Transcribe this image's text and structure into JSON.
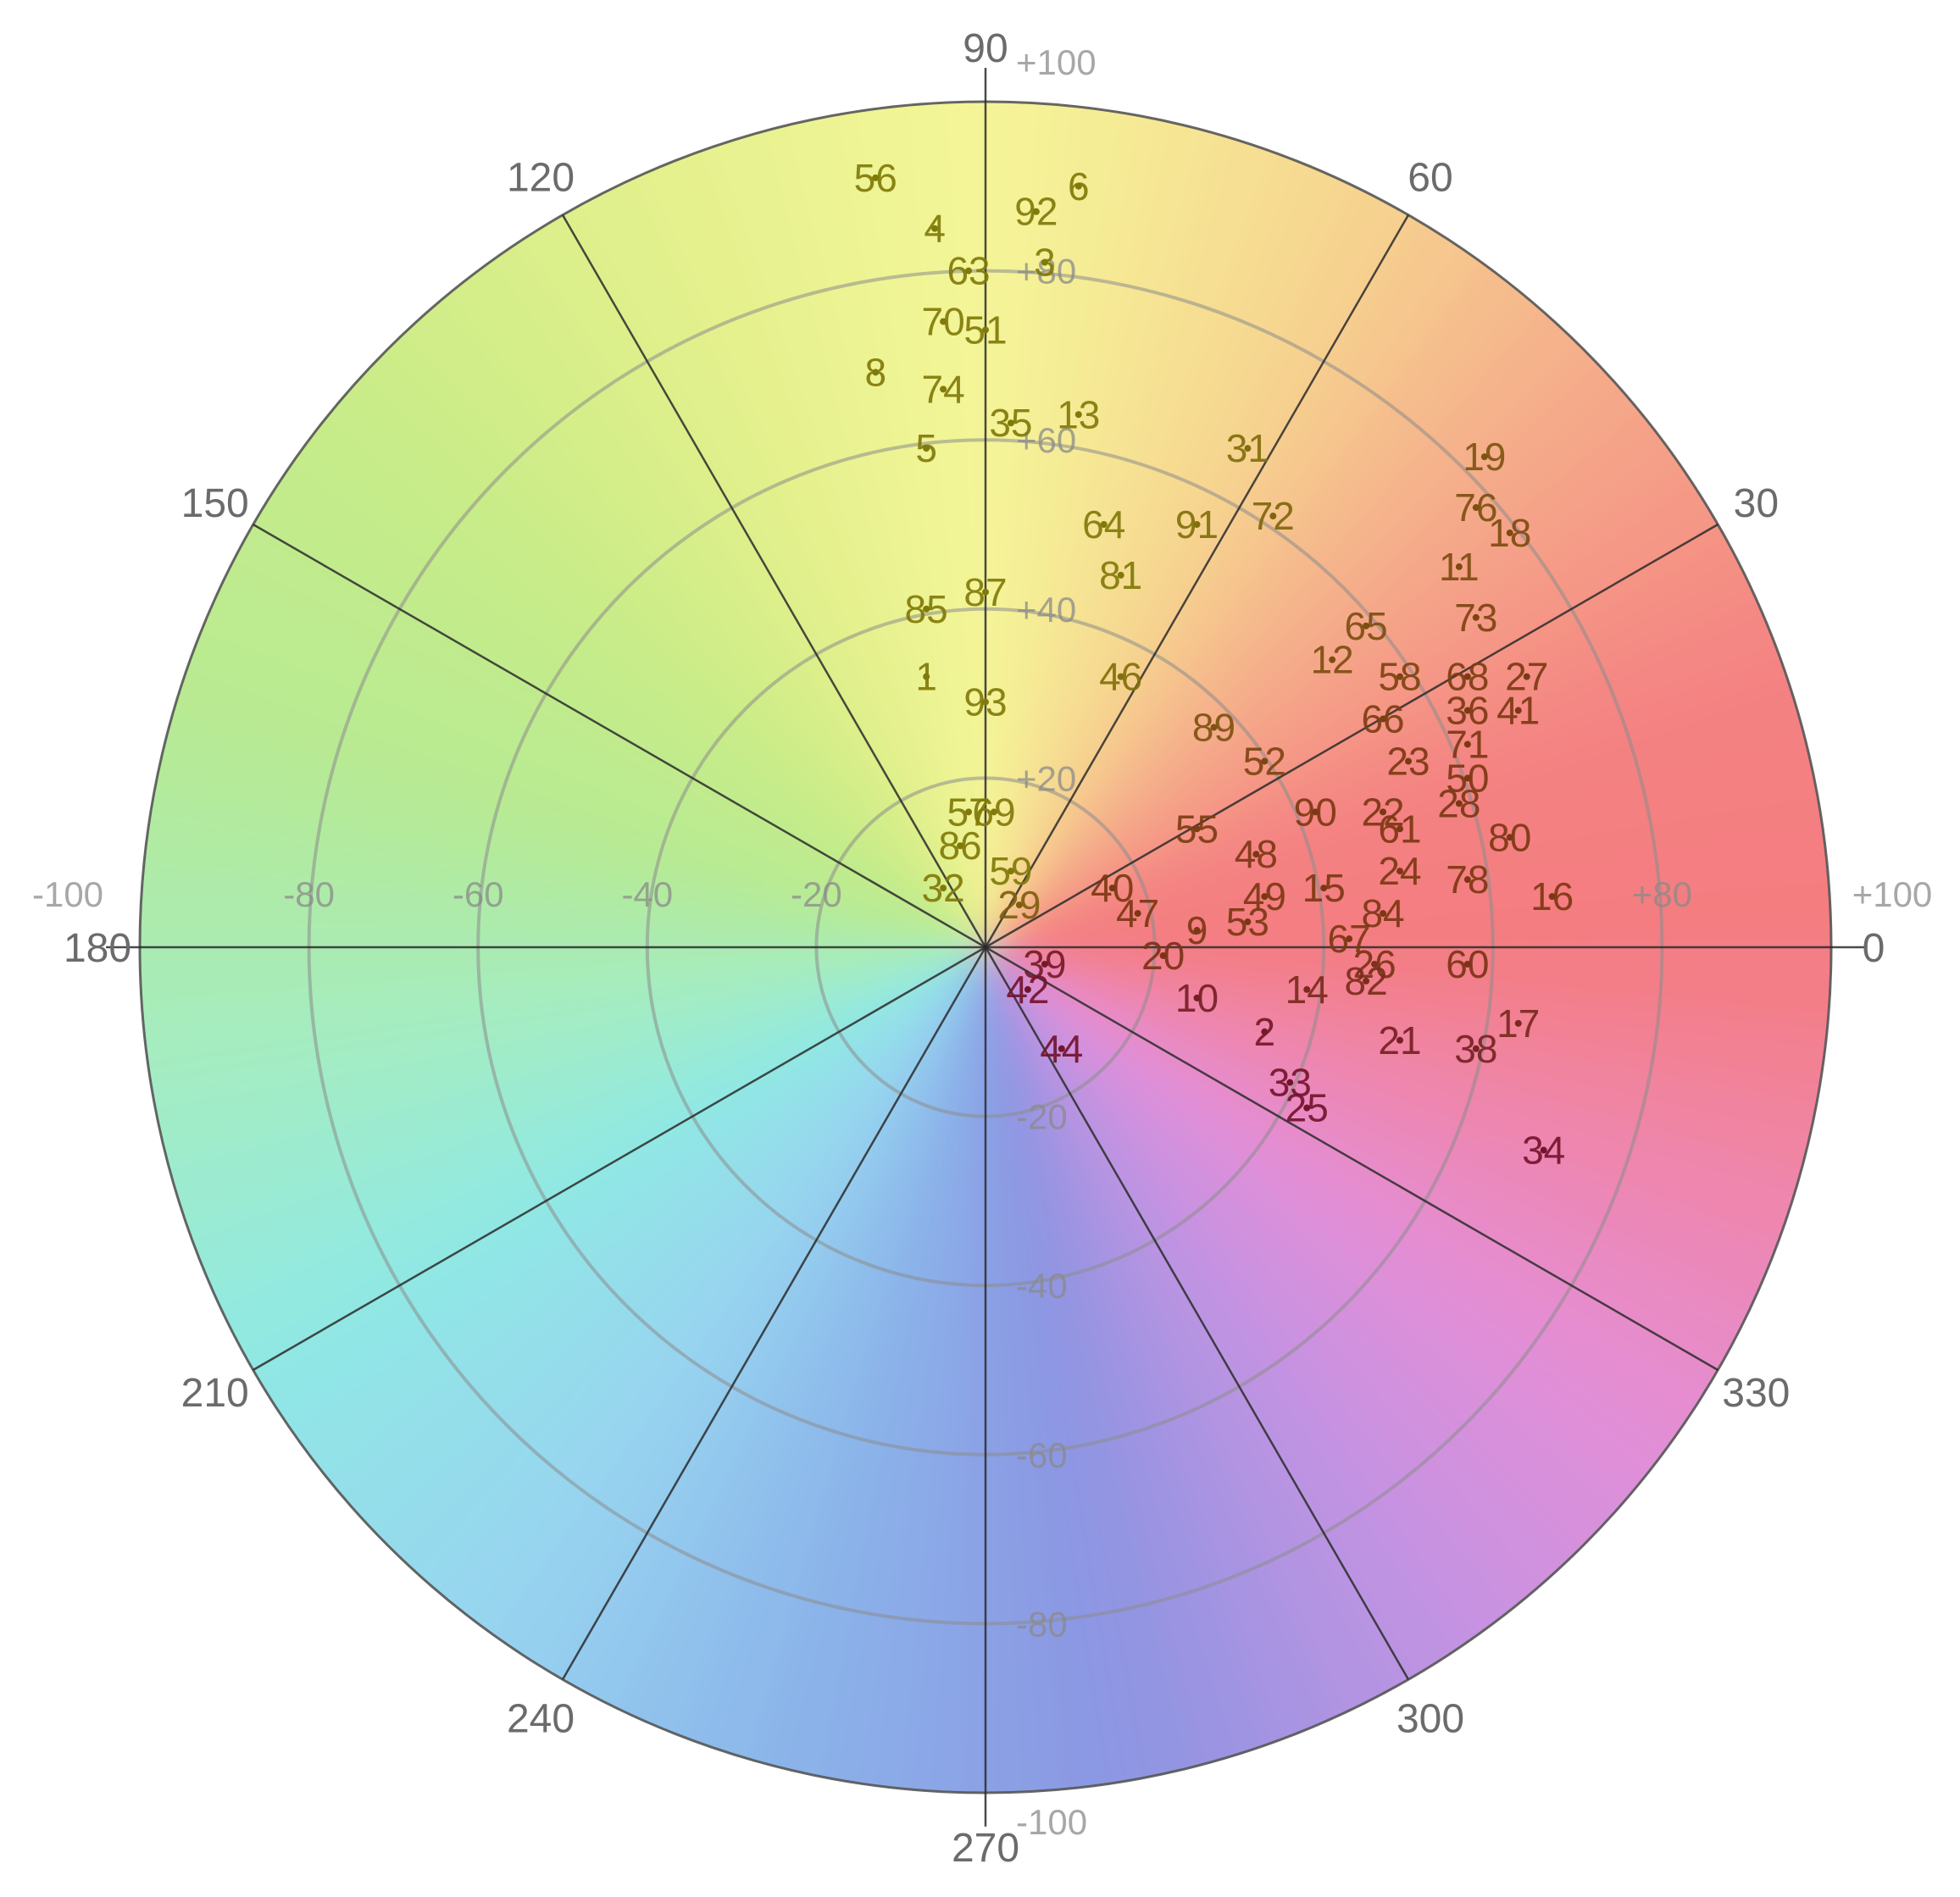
{
  "chart_data": {
    "type": "scatter",
    "subtype": "polar",
    "title": "",
    "angle_axis": {
      "unit": "degrees",
      "direction": "counterclockwise",
      "zero": "right",
      "labels": [
        "0",
        "30",
        "60",
        "90",
        "120",
        "150",
        "180",
        "210",
        "240",
        "270",
        "300",
        "330"
      ],
      "values": [
        0,
        30,
        60,
        90,
        120,
        150,
        180,
        210,
        240,
        270,
        300,
        330
      ]
    },
    "cartesian_axes": {
      "range": [
        -100,
        100
      ],
      "x_ticks": [
        "-100",
        "-80",
        "-60",
        "-40",
        "-20",
        "+80",
        "+100"
      ],
      "x_tick_values": [
        -100,
        -80,
        -60,
        -40,
        -20,
        80,
        100
      ],
      "y_ticks": [
        "+100",
        "+80",
        "+60",
        "+40",
        "+20",
        "-20",
        "-40",
        "-60",
        "-80",
        "-100"
      ],
      "y_tick_values": [
        100,
        80,
        60,
        40,
        20,
        -20,
        -40,
        -60,
        -80,
        -100
      ]
    },
    "rings": [
      20,
      40,
      60,
      80,
      100
    ],
    "grid": true,
    "background": "hue color wheel (red at 0, yellow at 90, green at 150, cyan at 210, blue at 240-270, magenta at 315)",
    "points": [
      {
        "label": "1",
        "x": -7,
        "y": 32
      },
      {
        "label": "2",
        "x": 33,
        "y": -10
      },
      {
        "label": "3",
        "x": 7,
        "y": 81
      },
      {
        "label": "4",
        "x": -6,
        "y": 85
      },
      {
        "label": "5",
        "x": -7,
        "y": 59
      },
      {
        "label": "6",
        "x": 11,
        "y": 90
      },
      {
        "label": "8",
        "x": -13,
        "y": 68
      },
      {
        "label": "9",
        "x": 25,
        "y": 2
      },
      {
        "label": "10",
        "x": 25,
        "y": -6
      },
      {
        "label": "11",
        "x": 56,
        "y": 45
      },
      {
        "label": "12",
        "x": 41,
        "y": 34
      },
      {
        "label": "13",
        "x": 11,
        "y": 63
      },
      {
        "label": "14",
        "x": 38,
        "y": -5
      },
      {
        "label": "15",
        "x": 40,
        "y": 7
      },
      {
        "label": "16",
        "x": 67,
        "y": 6
      },
      {
        "label": "17",
        "x": 63,
        "y": -9
      },
      {
        "label": "18",
        "x": 62,
        "y": 49
      },
      {
        "label": "19",
        "x": 59,
        "y": 58
      },
      {
        "label": "20",
        "x": 21,
        "y": -1
      },
      {
        "label": "21",
        "x": 49,
        "y": -11
      },
      {
        "label": "22",
        "x": 47,
        "y": 16
      },
      {
        "label": "23",
        "x": 50,
        "y": 22
      },
      {
        "label": "24",
        "x": 49,
        "y": 9
      },
      {
        "label": "25",
        "x": 38,
        "y": -19
      },
      {
        "label": "26",
        "x": 46,
        "y": -2
      },
      {
        "label": "27",
        "x": 64,
        "y": 32
      },
      {
        "label": "28",
        "x": 56,
        "y": 17
      },
      {
        "label": "29",
        "x": 4,
        "y": 5
      },
      {
        "label": "31",
        "x": 31,
        "y": 59
      },
      {
        "label": "32",
        "x": -5,
        "y": 7
      },
      {
        "label": "33",
        "x": 36,
        "y": -16
      },
      {
        "label": "34",
        "x": 66,
        "y": -24
      },
      {
        "label": "35",
        "x": 3,
        "y": 62
      },
      {
        "label": "36",
        "x": 57,
        "y": 28
      },
      {
        "label": "38",
        "x": 58,
        "y": -12
      },
      {
        "label": "39",
        "x": 7,
        "y": -2
      },
      {
        "label": "40",
        "x": 15,
        "y": 7
      },
      {
        "label": "41",
        "x": 63,
        "y": 28
      },
      {
        "label": "42",
        "x": 5,
        "y": -5
      },
      {
        "label": "44",
        "x": 9,
        "y": -12
      },
      {
        "label": "46",
        "x": 16,
        "y": 32
      },
      {
        "label": "47",
        "x": 18,
        "y": 4
      },
      {
        "label": "48",
        "x": 32,
        "y": 11
      },
      {
        "label": "49",
        "x": 33,
        "y": 6
      },
      {
        "label": "50",
        "x": 57,
        "y": 20
      },
      {
        "label": "51",
        "x": 0,
        "y": 73
      },
      {
        "label": "52",
        "x": 33,
        "y": 22
      },
      {
        "label": "53",
        "x": 31,
        "y": 3
      },
      {
        "label": "55",
        "x": 25,
        "y": 14
      },
      {
        "label": "56",
        "x": -13,
        "y": 91
      },
      {
        "label": "57",
        "x": -2,
        "y": 16
      },
      {
        "label": "58",
        "x": 49,
        "y": 32
      },
      {
        "label": "59",
        "x": 3,
        "y": 9
      },
      {
        "label": "60",
        "x": 57,
        "y": -2
      },
      {
        "label": "61",
        "x": 49,
        "y": 14
      },
      {
        "label": "63",
        "x": -2,
        "y": 80
      },
      {
        "label": "64",
        "x": 14,
        "y": 50
      },
      {
        "label": "65",
        "x": 45,
        "y": 38
      },
      {
        "label": "66",
        "x": 47,
        "y": 27
      },
      {
        "label": "67",
        "x": 43,
        "y": 1
      },
      {
        "label": "68",
        "x": 57,
        "y": 32
      },
      {
        "label": "69",
        "x": 1,
        "y": 16
      },
      {
        "label": "70",
        "x": -5,
        "y": 74
      },
      {
        "label": "71",
        "x": 57,
        "y": 24
      },
      {
        "label": "72",
        "x": 34,
        "y": 51
      },
      {
        "label": "73",
        "x": 58,
        "y": 39
      },
      {
        "label": "74",
        "x": -5,
        "y": 66
      },
      {
        "label": "76",
        "x": 58,
        "y": 52
      },
      {
        "label": "78",
        "x": 57,
        "y": 8
      },
      {
        "label": "80",
        "x": 62,
        "y": 13
      },
      {
        "label": "81",
        "x": 16,
        "y": 44
      },
      {
        "label": "82",
        "x": 45,
        "y": -4
      },
      {
        "label": "84",
        "x": 47,
        "y": 4
      },
      {
        "label": "85",
        "x": -7,
        "y": 40
      },
      {
        "label": "86",
        "x": -3,
        "y": 12
      },
      {
        "label": "87",
        "x": 0,
        "y": 42
      },
      {
        "label": "89",
        "x": 27,
        "y": 26
      },
      {
        "label": "90",
        "x": 39,
        "y": 16
      },
      {
        "label": "91",
        "x": 25,
        "y": 50
      },
      {
        "label": "92",
        "x": 6,
        "y": 87
      },
      {
        "label": "93",
        "x": 0,
        "y": 29
      }
    ]
  }
}
